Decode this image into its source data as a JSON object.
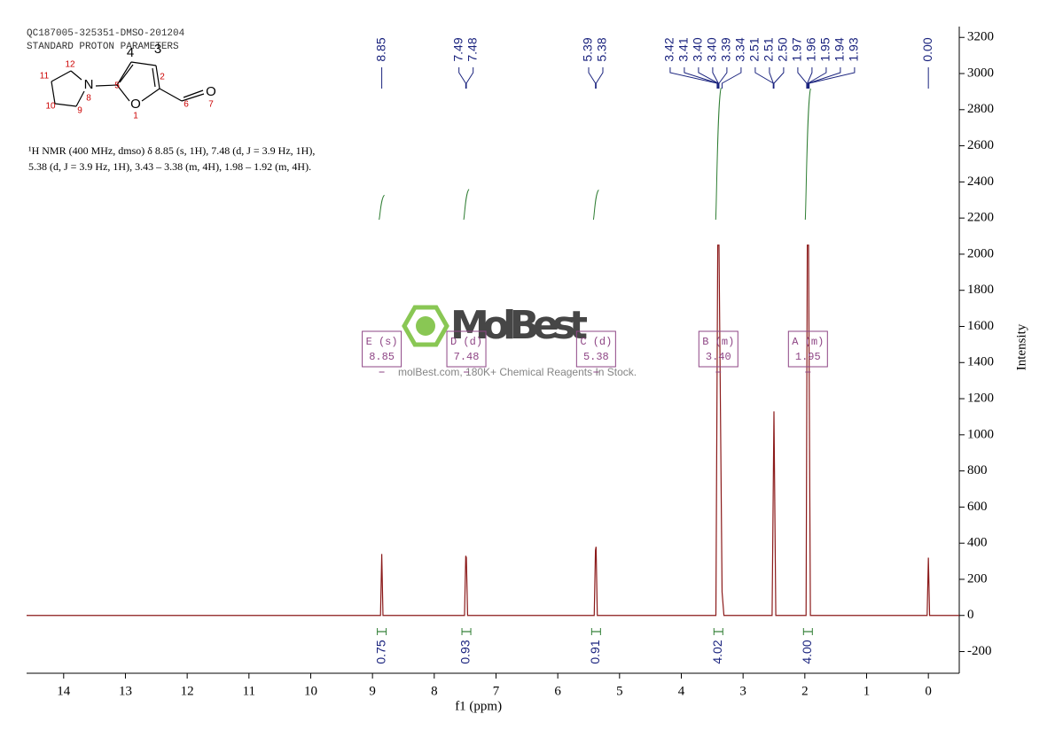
{
  "header": {
    "sample": "QC187005-325351-DMSO-201204",
    "method": "STANDARD PROTON PARAMETERS",
    "description": [
      "¹H NMR (400 MHz, dmso) δ 8.85 (s, 1H), 7.48 (d, J = 3.9 Hz, 1H),",
      "5.38 (d, J = 3.9 Hz, 1H), 3.43 – 3.38 (m, 4H), 1.98 – 1.92 (m, 4H)."
    ]
  },
  "structure": {
    "atoms": [
      "12",
      "11",
      "10",
      "9",
      "N",
      "8",
      "5",
      "4",
      "3",
      "2",
      "O",
      "1",
      "6",
      "O",
      "7"
    ]
  },
  "watermark": {
    "brand": "MolBest",
    "tagline": "molBest.com, 180K+ Chemical Reagents In Stock."
  },
  "chart_data": {
    "type": "line",
    "xlabel": "f1 (ppm)",
    "ylabel": "Intensity",
    "color": "#8b1a1a",
    "x": [
      14.6,
      8.87,
      8.85,
      8.83,
      7.51,
      7.49,
      7.48,
      7.46,
      5.41,
      5.39,
      5.38,
      5.36,
      3.44,
      3.41,
      3.39,
      3.34,
      3.31,
      2.53,
      2.5,
      2.47,
      1.98,
      1.96,
      1.94,
      1.91,
      0.02,
      0,
      -0.02,
      -0.5
    ],
    "values": [
      0,
      0,
      340,
      0,
      0,
      330,
      320,
      0,
      0,
      360,
      380,
      0,
      0,
      2050,
      2050,
      130,
      0,
      0,
      1130,
      0,
      0,
      2050,
      2050,
      0,
      0,
      320,
      0,
      0
    ],
    "xlim": [
      14.6,
      -0.5
    ],
    "xticks": [
      14,
      13,
      12,
      11,
      10,
      9,
      8,
      7,
      6,
      5,
      4,
      3,
      2,
      1,
      0
    ],
    "ylim": [
      -320,
      3260
    ],
    "yticks": [
      -200,
      0,
      200,
      400,
      600,
      800,
      1000,
      1200,
      1400,
      1600,
      1800,
      2000,
      2200,
      2400,
      2600,
      2800,
      3000,
      3200
    ],
    "peaks": {
      "color": "#1a237e",
      "values": [
        8.85,
        7.49,
        7.48,
        5.39,
        5.38,
        3.42,
        3.41,
        3.4,
        3.4,
        3.39,
        3.34,
        2.51,
        2.51,
        2.5,
        1.97,
        1.96,
        1.95,
        1.94,
        1.93,
        0
      ],
      "value_labels": [
        "8.85",
        "7.49",
        "7.48",
        "5.39",
        "5.38",
        "3.42",
        "3.41",
        "3.40",
        "3.40",
        "3.39",
        "3.34",
        "2.51",
        "2.51",
        "2.50",
        "1.97",
        "1.96",
        "1.95",
        "1.94",
        "1.93",
        "0.00"
      ]
    },
    "integrals": {
      "color": "#2e7d32",
      "x": [
        8.85,
        7.48,
        5.38,
        3.4,
        1.95
      ],
      "values": [
        0.75,
        0.93,
        0.91,
        4.02,
        4
      ],
      "value_labels": [
        "0.75",
        "0.93",
        "0.91",
        "4.02",
        "4.00"
      ]
    },
    "multiplets": {
      "color": "#8e4585",
      "labels": [
        "E (s)",
        "D (d)",
        "C (d)",
        "B (m)",
        "A (m)"
      ],
      "values": [
        8.85,
        7.48,
        5.38,
        3.4,
        1.95
      ],
      "value_labels": [
        "8.85",
        "7.48",
        "5.38",
        "3.40",
        "1.95"
      ]
    }
  }
}
